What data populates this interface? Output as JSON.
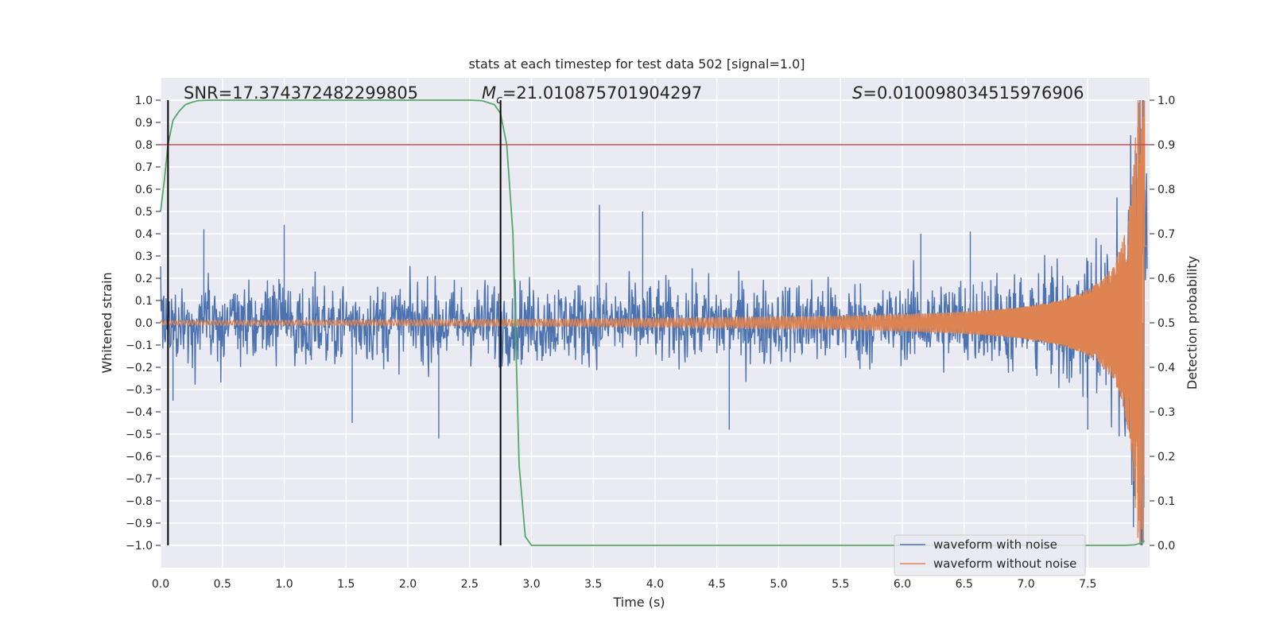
{
  "chart_data": {
    "type": "line",
    "title": "stats at each timestep for test data 502 [signal=1.0]",
    "xlabel": "Time (s)",
    "ylabel": "Whitened strain",
    "y2label": "Detection probability",
    "xlim": [
      0.0,
      8.0
    ],
    "ylim": [
      -1.1,
      1.1
    ],
    "y2lim": [
      -0.05,
      1.05
    ],
    "x_ticks": [
      "0.0",
      "0.5",
      "1.0",
      "1.5",
      "2.0",
      "2.5",
      "3.0",
      "3.5",
      "4.0",
      "4.5",
      "5.0",
      "5.5",
      "6.0",
      "6.5",
      "7.0",
      "7.5"
    ],
    "y_ticks": [
      "1.0",
      "0.9",
      "0.8",
      "0.7",
      "0.6",
      "0.5",
      "0.4",
      "0.3",
      "0.2",
      "0.1",
      "0.0",
      "−0.1",
      "−0.2",
      "−0.3",
      "−0.4",
      "−0.5",
      "−0.6",
      "−0.7",
      "−0.8",
      "−0.9",
      "−1.0"
    ],
    "y2_ticks": [
      "1.0",
      "0.9",
      "0.8",
      "0.7",
      "0.6",
      "0.5",
      "0.4",
      "0.3",
      "0.2",
      "0.1",
      "0.0"
    ],
    "annotations": {
      "snr": "SNR=17.374372482299805",
      "mc_symbol": "M",
      "mc_sub": "c",
      "mc_value": "=21.010875701904297",
      "s_symbol": "S",
      "s_value": "=0.010098034515976906"
    },
    "vlines": [
      0.06,
      2.75
    ],
    "threshold": 0.9,
    "legend": {
      "position": "lower-right",
      "entries": [
        "waveform with noise",
        "waveform without noise"
      ]
    },
    "grid": true,
    "colors": {
      "noise": "#4c72b0",
      "clean": "#dd8452",
      "probability": "#55a868",
      "threshold": "#c44e52",
      "vline": "#000000",
      "axes_bg": "#eaeaf2",
      "grid": "#ffffff"
    },
    "series": [
      {
        "name": "waveform with noise",
        "description_values": "dense noise, amplitude envelope approx ±0.3 with peaks up to 0.55, growing near end to ±1.0",
        "x_range": [
          0.0,
          7.98
        ],
        "peak_markers": [
          [
            0.1,
            -0.35
          ],
          [
            0.35,
            0.42
          ],
          [
            1.0,
            0.44
          ],
          [
            1.55,
            -0.45
          ],
          [
            2.25,
            -0.52
          ],
          [
            3.55,
            0.53
          ],
          [
            3.9,
            0.5
          ],
          [
            4.6,
            -0.48
          ],
          [
            6.15,
            0.4
          ],
          [
            6.55,
            0.41
          ],
          [
            7.5,
            -0.48
          ],
          [
            7.85,
            0.55
          ],
          [
            7.95,
            1.0
          ],
          [
            7.94,
            -1.0
          ]
        ]
      },
      {
        "name": "waveform without noise",
        "description_values": "chirp oscillation with amplitude rising from ~0.01 to ~1.0 at t≈7.95",
        "x_range": [
          0.0,
          7.98
        ]
      },
      {
        "x": [
          0.0,
          0.03,
          0.06,
          0.1,
          0.15,
          0.2,
          0.25,
          0.3,
          0.4,
          0.5,
          1.0,
          1.5,
          2.0,
          2.5,
          2.6,
          2.7,
          2.75,
          2.8,
          2.85,
          2.9,
          2.95,
          3.0,
          3.1,
          3.5,
          5.0,
          6.0,
          7.0,
          7.6,
          7.8,
          7.88,
          7.93,
          7.96
        ],
        "values": [
          0.75,
          0.82,
          0.9,
          0.955,
          0.975,
          0.99,
          0.995,
          0.999,
          1.0,
          1.0,
          1.0,
          1.0,
          1.0,
          1.0,
          0.999,
          0.99,
          0.97,
          0.9,
          0.7,
          0.18,
          0.02,
          0.0,
          0.0,
          0.0,
          0.0,
          0.0,
          0.0,
          0.0,
          0.0,
          0.001,
          0.005,
          0.01
        ]
      }
    ]
  }
}
